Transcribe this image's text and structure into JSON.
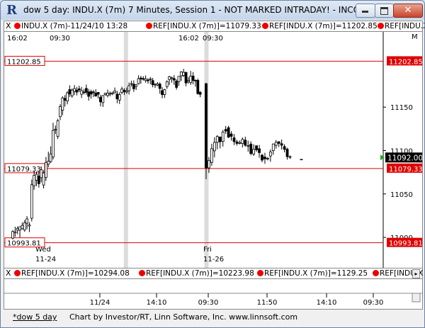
{
  "window": {
    "app_icon": "R",
    "title": "dow 5 day: INDU.X (7m) 7 Minutes, Session 1 - NOT MARKED INTRADAY! - INCO...",
    "close_symbol": "✕"
  },
  "top_ref_bar": {
    "close_symbol": "X",
    "items": [
      "INDU.X (7m)-11/24/10 13:28",
      "REF[INDU.X (7m)]=11079.33",
      "REF[INDU.X (7m)]=11202.85",
      "REF[INDU.X ("
    ]
  },
  "bottom_ref_bar": {
    "close_symbol": "X",
    "items": [
      "REF[INDU.X (7m)]=10294.08",
      "REF[INDU.X (7m)]=10223.98",
      "REF[INDU.X (7m)]=1129.25",
      "REF[INDU.X (7m"
    ]
  },
  "chart_data": {
    "type": "candlestick",
    "y_axis_ticks": [
      "11150",
      "11100",
      "11050",
      "11000"
    ],
    "y_axis_ticks_vals": [
      11150,
      11100,
      11050,
      11000
    ],
    "y_axis_corner_label": "M",
    "time_labels_top": [
      "16:02",
      "09:30",
      "16:02",
      "09:30"
    ],
    "day_labels": [
      {
        "day": "Wed",
        "date": "11-24"
      },
      {
        "day": "Fri",
        "date": "11-26"
      }
    ],
    "reference_lines": [
      {
        "value": 11202.85,
        "label": "11202.85"
      },
      {
        "value": 11079.33,
        "label": "11079.33"
      },
      {
        "value": 10993.81,
        "label": "10993.81"
      }
    ],
    "last_price": {
      "value": 11092.0,
      "label": "11092.00"
    },
    "bottom_axis_labels": [
      "11/24",
      "14:10",
      "09:30",
      "11:50",
      "14:10",
      "09:30"
    ],
    "y_range": [
      10965,
      11235
    ],
    "session_separators": [
      0.316,
      0.53
    ],
    "candles_day1": [
      [
        10999.1,
        11006.8,
        10997.7,
        11008.3
      ],
      [
        11005.2,
        11006.4,
        11000.6,
        11012.3
      ],
      [
        11008.2,
        11010.2,
        11003.6,
        11012.6
      ],
      [
        11008.4,
        11012.3,
        11000.0,
        11012.3
      ],
      [
        11010.0,
        11013.8,
        11009.0,
        11017.0
      ],
      [
        11008.5,
        11016.9,
        11006.5,
        11020.0
      ],
      [
        11016.3,
        11021.3,
        11009.5,
        11024.5
      ],
      [
        11013.1,
        11014.3,
        11006.1,
        11017.4
      ],
      [
        11022.0,
        11060.6,
        11018.4,
        11066.6
      ],
      [
        11059.5,
        11071.5,
        11054.8,
        11076.8
      ],
      [
        11065.7,
        11072.6,
        11059.0,
        11075.7
      ],
      [
        11070.6,
        11061.8,
        11057.3,
        11076.7
      ],
      [
        11068.8,
        11077.9,
        11063.5,
        11081.8
      ],
      [
        11060.3,
        11074.2,
        11056.4,
        11077.3
      ],
      [
        11069.1,
        11086.4,
        11065.1,
        11092.6
      ],
      [
        11084.2,
        11087.6,
        11080.7,
        11098.7
      ],
      [
        11087.3,
        11096.1,
        11085.6,
        11104.9
      ],
      [
        11092.5,
        11123.2,
        11089.7,
        11132.0
      ],
      [
        11123.9,
        11124.6,
        11119.0,
        11128.8
      ],
      [
        11116.2,
        11134.3,
        11113.3,
        11136.6
      ],
      [
        11139.0,
        11150.6,
        11135.0,
        11153.2
      ],
      [
        11146.4,
        11160.6,
        11140.7,
        11162.5
      ],
      [
        11160.0,
        11157.9,
        11150.6,
        11163.8
      ],
      [
        11157.1,
        11166.4,
        11153.2,
        11168.3
      ],
      [
        11170.2,
        11165.1,
        11161.7,
        11175.1
      ],
      [
        11163.1,
        11169.6,
        11160.8,
        11171.4
      ],
      [
        11168.2,
        11171.3,
        11163.9,
        11175.4
      ],
      [
        11169.6,
        11167.3,
        11163.5,
        11173.1
      ],
      [
        11171.1,
        11169.8,
        11167.2,
        11174.6
      ],
      [
        11164.8,
        11168.9,
        11160.5,
        11173.2
      ],
      [
        11167.4,
        11167.1,
        11164.6,
        11170.9
      ],
      [
        11171.5,
        11167.1,
        11164.3,
        11176.0
      ],
      [
        11167.6,
        11162.4,
        11157.4,
        11171.0
      ],
      [
        11167.8,
        11165.0,
        11159.7,
        11170.1
      ],
      [
        11167.5,
        11166.8,
        11161.6,
        11169.6
      ],
      [
        11166.0,
        11162.8,
        11162.0,
        11170.7
      ],
      [
        11167.0,
        11164.8,
        11160.0,
        11167.3
      ],
      [
        11161.4,
        11156.1,
        11150.8,
        11164.2
      ],
      [
        11155.2,
        11163.2,
        11150.2,
        11163.8
      ],
      [
        11164.4,
        11166.0,
        11163.1,
        11166.5
      ],
      [
        11163.4,
        11166.2,
        11161.2,
        11170.3
      ],
      [
        11164.9,
        11165.8,
        11162.4,
        11168.0
      ],
      [
        11165.2,
        11166.3,
        11163.8,
        11167.8
      ],
      [
        11166.6,
        11168.6,
        11165.7,
        11172.6
      ],
      [
        11165.0,
        11159.5,
        11154.5,
        11168.7
      ],
      [
        11158.1,
        11164.3,
        11153.6,
        11167.1
      ],
      [
        11166.9,
        11170.8,
        11164.9,
        11173.5
      ],
      [
        11169.4,
        11167.8,
        11163.9,
        11171.7
      ],
      [
        11167.3,
        11168.6,
        11165.5,
        11172.5
      ],
      [
        11168.9,
        11174.6,
        11164.5,
        11178.2
      ],
      [
        11176.2,
        11177.1,
        11173.7,
        11180.5
      ],
      [
        11176.4,
        11171.1,
        11167.5,
        11180.8
      ],
      [
        11173.8,
        11175.7,
        11169.7,
        11176.4
      ],
      [
        11177.0,
        11182.8,
        11176.0,
        11186.7
      ],
      [
        11183.5,
        11182.4,
        11177.1,
        11186.0
      ],
      [
        11182.9,
        11182.6,
        11180.6,
        11185.5
      ],
      [
        11180.6,
        11182.5,
        11178.1,
        11186.5
      ],
      [
        11181.1,
        11180.6,
        11177.1,
        11183.2
      ],
      [
        11181.6,
        11182.6,
        11176.5,
        11184.6
      ],
      [
        11180.6,
        11175.8,
        11172.8,
        11183.6
      ],
      [
        11175.8,
        11176.3,
        11172.2,
        11177.4
      ],
      [
        11175.3,
        11176.9,
        11174.0,
        11178.8
      ],
      [
        11176.6,
        11171.5,
        11165.5,
        11178.4
      ],
      [
        11169.0,
        11164.4,
        11160.2,
        11172.9
      ],
      [
        11164.5,
        11170.1,
        11160.6,
        11171.1
      ],
      [
        11173.7,
        11179.3,
        11171.1,
        11180.9
      ],
      [
        11181.8,
        11185.1,
        11175.6,
        11186.1
      ],
      [
        11183.8,
        11183.8,
        11178.1,
        11185.0
      ],
      [
        11182.9,
        11181.2,
        11175.7,
        11186.8
      ],
      [
        11180.0,
        11172.7,
        11170.1,
        11182.0
      ],
      [
        11179.4,
        11185.4,
        11174.5,
        11185.8
      ],
      [
        11186.0,
        11190.5,
        11180.1,
        11191.4
      ],
      [
        11186.5,
        11190.1,
        11184.6,
        11194.0
      ],
      [
        11190.1,
        11177.8,
        11174.0,
        11190.3
      ],
      [
        11179.5,
        11180.8,
        11177.0,
        11184.6
      ],
      [
        11178.3,
        11185.6,
        11175.6,
        11191.7
      ],
      [
        11185.8,
        11180.7,
        11176.2,
        11190.4
      ],
      [
        11180.9,
        11180.4,
        11173.5,
        11181.8
      ],
      [
        11180.8,
        11165.6,
        11164.3,
        11182.9
      ],
      [
        11167.0,
        11164.7,
        11161.4,
        11168.5
      ]
    ],
    "candles_day2": [
      [
        11177.0,
        11080.0,
        11067.0,
        11178.0
      ],
      [
        11080.0,
        11088.4,
        11074.2,
        11092.5
      ],
      [
        11086.3,
        11102.1,
        11082.4,
        11107.8
      ],
      [
        11099.7,
        11109.4,
        11092.1,
        11115.3
      ],
      [
        11109.4,
        11116.2,
        11101.5,
        11117.8
      ],
      [
        11115.6,
        11110.1,
        11102.5,
        11116.1
      ],
      [
        11110.5,
        11121.3,
        11104.6,
        11123.7
      ],
      [
        11124.3,
        11122.4,
        11119.0,
        11128.3
      ],
      [
        11126.3,
        11115.4,
        11114.4,
        11128.5
      ],
      [
        11119.1,
        11116.4,
        11111.5,
        11122.2
      ],
      [
        11114.6,
        11110.3,
        11106.3,
        11119.0
      ],
      [
        11110.1,
        11108.2,
        11105.8,
        11112.4
      ],
      [
        11108.2,
        11109.2,
        11107.1,
        11111.6
      ],
      [
        11108.1,
        11112.9,
        11103.6,
        11115.0
      ],
      [
        11112.0,
        11106.1,
        11104.5,
        11115.9
      ],
      [
        11105.5,
        11105.8,
        11098.6,
        11111.4
      ],
      [
        11107.5,
        11096.6,
        11094.4,
        11110.7
      ],
      [
        11096.0,
        11101.4,
        11093.9,
        11107.2
      ],
      [
        11105.6,
        11100.9,
        11098.6,
        11105.6
      ],
      [
        11102.1,
        11097.6,
        11091.7,
        11106.4
      ],
      [
        11094.7,
        11089.0,
        11086.6,
        11096.2
      ],
      [
        11092.5,
        11090.4,
        11084.7,
        11097.4
      ],
      [
        11090.9,
        11091.0,
        11088.6,
        11092.6
      ],
      [
        11093.7,
        11098.4,
        11087.0,
        11101.3
      ],
      [
        11099.9,
        11107.6,
        11095.1,
        11108.0
      ],
      [
        11106.0,
        11109.6,
        11102.2,
        11112.1
      ],
      [
        11110.1,
        11108.2,
        11104.1,
        11110.8
      ],
      [
        11107.9,
        11106.1,
        11101.2,
        11112.8
      ],
      [
        11104.6,
        11101.4,
        11097.9,
        11107.3
      ],
      [
        11101.6,
        11092.9,
        11089.5,
        11103.2
      ],
      [
        11092.4,
        11093.0,
        11090.3,
        11094.3
      ]
    ]
  },
  "status_bar": {
    "tab_label": "*dow 5 day",
    "credit": "Chart by Investor/RT, Linn Software, Inc. www.linnsoft.com"
  }
}
